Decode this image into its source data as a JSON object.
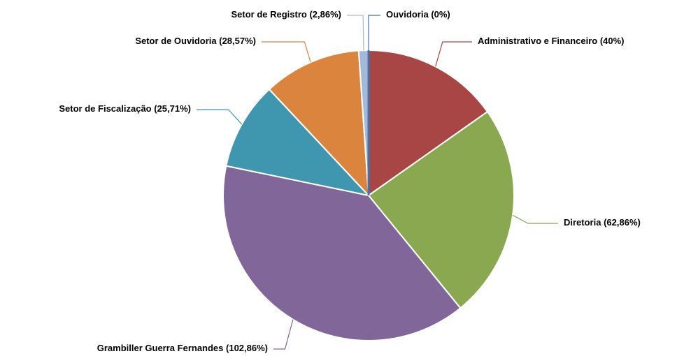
{
  "chart_data": {
    "type": "pie",
    "categories": [
      "Administrativo e Financeiro",
      "Diretoria",
      "Grambiller Guerra Fernandes",
      "Setor de Fiscalização",
      "Setor de Ouvidoria",
      "Setor de Registro",
      "Ouvidoria"
    ],
    "values": [
      40,
      62.86,
      102.86,
      25.71,
      28.57,
      2.86,
      0
    ],
    "value_labels": [
      "(40%)",
      "(62,86%)",
      "(102,86%)",
      "(25,71%)",
      "(28,57%)",
      "(2,86%)",
      "(0%)"
    ],
    "colors": [
      "#a84645",
      "#8aa84f",
      "#806699",
      "#3e97af",
      "#db843d",
      "#a4b9da",
      "#4572a7"
    ]
  }
}
